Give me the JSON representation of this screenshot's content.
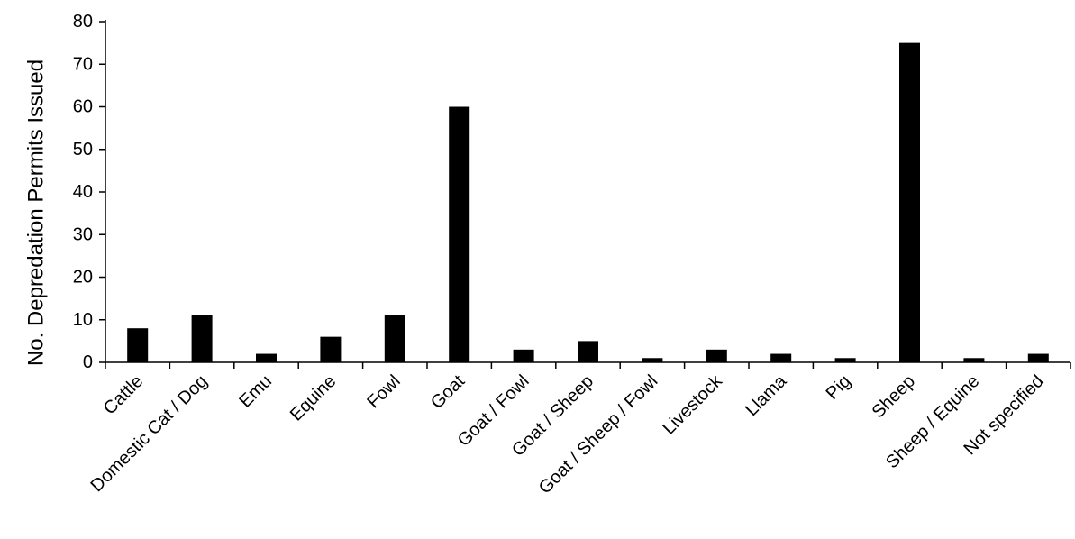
{
  "chart_data": {
    "type": "bar",
    "title": "",
    "xlabel": "",
    "ylabel": "No. Depredation Permits Issued",
    "categories": [
      "Cattle",
      "Domestic Cat / Dog",
      "Emu",
      "Equine",
      "Fowl",
      "Goat",
      "Goat / Fowl",
      "Goat / Sheep",
      "Goat / Sheep / Fowl",
      "Livestock",
      "Llama",
      "Pig",
      "Sheep",
      "Sheep / Equine",
      "Not specified"
    ],
    "values": [
      8,
      11,
      2,
      6,
      11,
      60,
      3,
      5,
      1,
      3,
      2,
      1,
      75,
      1,
      2
    ],
    "ylim": [
      0,
      80
    ],
    "yticks": [
      0,
      10,
      20,
      30,
      40,
      50,
      60,
      70,
      80
    ],
    "grid": false,
    "colors": {
      "bar": "#000000",
      "axis": "#000000"
    }
  }
}
